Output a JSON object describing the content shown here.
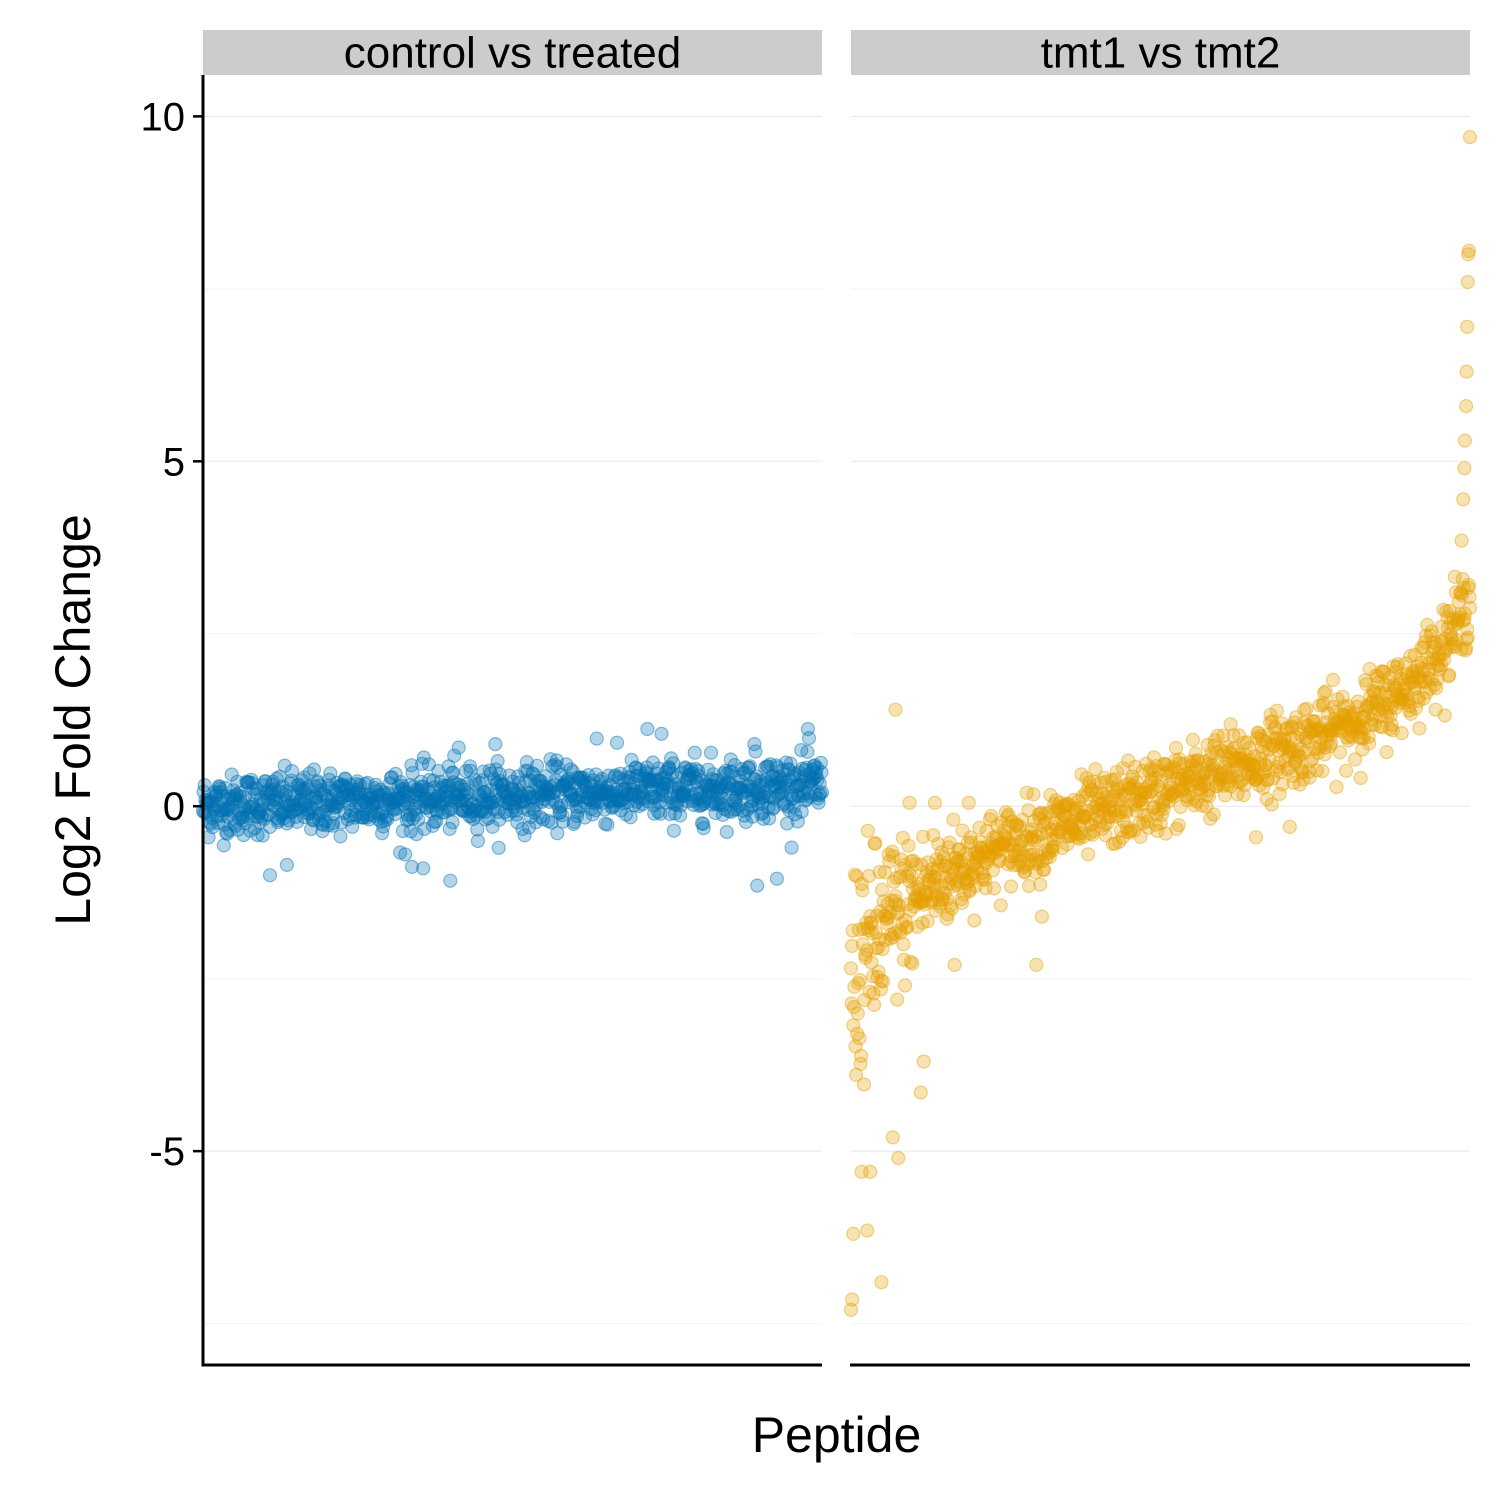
{
  "chart_data": {
    "type": "scatter",
    "xlabel": "Peptide",
    "ylabel": "Log2 Fold Change",
    "ylim": [
      -8.1,
      10.6
    ],
    "y_ticks": [
      -5,
      0,
      5,
      10
    ],
    "grid": true,
    "legend": "none",
    "facets": [
      {
        "label": "control vs treated",
        "color": "#0072B2",
        "n_points": 1100,
        "x_range": [
          1,
          1100
        ],
        "trend_start": 0.0,
        "trend_end": 0.3,
        "spread": 0.22,
        "outliers": [
          {
            "x": 120,
            "y": -1.0
          },
          {
            "x": 150,
            "y": -0.85
          },
          {
            "x": 360,
            "y": -0.7
          },
          {
            "x": 372,
            "y": -0.88
          },
          {
            "x": 392,
            "y": -0.9
          },
          {
            "x": 440,
            "y": -1.08
          },
          {
            "x": 455,
            "y": 0.85
          },
          {
            "x": 520,
            "y": 0.9
          },
          {
            "x": 700,
            "y": 0.98
          },
          {
            "x": 790,
            "y": 1.12
          },
          {
            "x": 815,
            "y": 1.05
          },
          {
            "x": 980,
            "y": 0.9
          },
          {
            "x": 985,
            "y": -1.15
          },
          {
            "x": 1020,
            "y": -1.05
          },
          {
            "x": 1075,
            "y": 1.12
          }
        ]
      },
      {
        "label": "tmt1 vs tmt2",
        "color": "#E69F00",
        "n_points": 1100,
        "x_range": [
          1,
          1100
        ],
        "trend_start": -2.6,
        "trend_end": 3.0,
        "spread": 0.28,
        "outliers": [
          {
            "x": 1,
            "y": -7.3
          },
          {
            "x": 3,
            "y": -7.15
          },
          {
            "x": 5,
            "y": -6.2
          },
          {
            "x": 30,
            "y": -6.15
          },
          {
            "x": 55,
            "y": -6.9
          },
          {
            "x": 20,
            "y": -5.3
          },
          {
            "x": 35,
            "y": -5.3
          },
          {
            "x": 85,
            "y": -5.1
          },
          {
            "x": 75,
            "y": -4.8
          },
          {
            "x": 130,
            "y": -3.7
          },
          {
            "x": 125,
            "y": -4.15
          },
          {
            "x": 185,
            "y": -2.3
          },
          {
            "x": 330,
            "y": -2.3
          },
          {
            "x": 340,
            "y": -1.6
          },
          {
            "x": 80,
            "y": 1.4
          },
          {
            "x": 105,
            "y": 0.05
          },
          {
            "x": 150,
            "y": 0.05
          },
          {
            "x": 210,
            "y": 0.05
          },
          {
            "x": 720,
            "y": -0.45
          },
          {
            "x": 780,
            "y": -0.3
          },
          {
            "x": 1085,
            "y": 3.85
          },
          {
            "x": 1088,
            "y": 4.45
          },
          {
            "x": 1090,
            "y": 4.9
          },
          {
            "x": 1091,
            "y": 5.3
          },
          {
            "x": 1093,
            "y": 5.8
          },
          {
            "x": 1094,
            "y": 6.3
          },
          {
            "x": 1095,
            "y": 6.95
          },
          {
            "x": 1096,
            "y": 7.6
          },
          {
            "x": 1097,
            "y": 8.0
          },
          {
            "x": 1098,
            "y": 8.05
          },
          {
            "x": 1100,
            "y": 9.7
          }
        ]
      }
    ]
  }
}
